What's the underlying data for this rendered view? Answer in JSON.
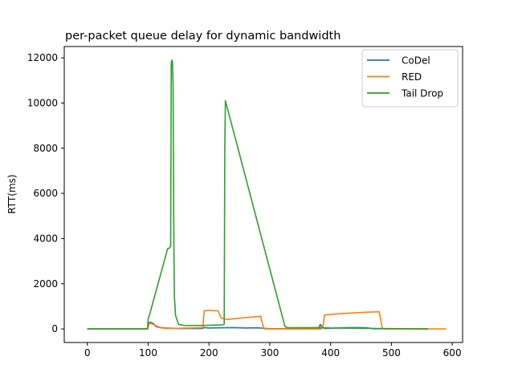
{
  "chart_data": {
    "type": "line",
    "title": "per-packet queue delay for dynamic bandwidth",
    "xlabel": "",
    "ylabel": "RTT(ms)",
    "xlim": [
      -38,
      617
    ],
    "ylim": [
      -600,
      12500
    ],
    "xticks": [
      0,
      100,
      200,
      300,
      400,
      500,
      600
    ],
    "yticks": [
      0,
      2000,
      4000,
      6000,
      8000,
      10000,
      12000
    ],
    "grid": false,
    "legend_position": "top-right",
    "series": [
      {
        "name": "CoDel",
        "color": "#1f77b4",
        "points": [
          [
            0,
            0
          ],
          [
            99,
            0
          ],
          [
            100,
            150
          ],
          [
            102,
            300
          ],
          [
            105,
            280
          ],
          [
            108,
            250
          ],
          [
            110,
            200
          ],
          [
            112,
            120
          ],
          [
            115,
            90
          ],
          [
            120,
            60
          ],
          [
            130,
            40
          ],
          [
            140,
            30
          ],
          [
            150,
            20
          ],
          [
            190,
            20
          ],
          [
            191,
            60
          ],
          [
            200,
            40
          ],
          [
            220,
            50
          ],
          [
            240,
            60
          ],
          [
            260,
            40
          ],
          [
            280,
            50
          ],
          [
            290,
            30
          ],
          [
            300,
            10
          ],
          [
            380,
            10
          ],
          [
            383,
            200
          ],
          [
            386,
            80
          ],
          [
            390,
            20
          ],
          [
            400,
            30
          ],
          [
            420,
            50
          ],
          [
            440,
            60
          ],
          [
            460,
            50
          ],
          [
            465,
            30
          ],
          [
            470,
            10
          ],
          [
            560,
            0
          ]
        ]
      },
      {
        "name": "RED",
        "color": "#ff7f0e",
        "points": [
          [
            0,
            0
          ],
          [
            99,
            0
          ],
          [
            100,
            100
          ],
          [
            102,
            250
          ],
          [
            106,
            230
          ],
          [
            110,
            180
          ],
          [
            115,
            120
          ],
          [
            120,
            60
          ],
          [
            130,
            20
          ],
          [
            150,
            30
          ],
          [
            170,
            40
          ],
          [
            190,
            60
          ],
          [
            192,
            800
          ],
          [
            200,
            820
          ],
          [
            210,
            810
          ],
          [
            215,
            800
          ],
          [
            220,
            480
          ],
          [
            230,
            420
          ],
          [
            240,
            450
          ],
          [
            260,
            500
          ],
          [
            285,
            560
          ],
          [
            290,
            10
          ],
          [
            300,
            0
          ],
          [
            385,
            0
          ],
          [
            388,
            200
          ],
          [
            390,
            620
          ],
          [
            400,
            640
          ],
          [
            420,
            680
          ],
          [
            440,
            710
          ],
          [
            460,
            740
          ],
          [
            480,
            760
          ],
          [
            485,
            20
          ],
          [
            490,
            0
          ],
          [
            590,
            0
          ]
        ]
      },
      {
        "name": "Tail Drop",
        "color": "#2ca02c",
        "points": [
          [
            0,
            0
          ],
          [
            99,
            0
          ],
          [
            100,
            450
          ],
          [
            102,
            600
          ],
          [
            132,
            3550
          ],
          [
            135,
            3580
          ],
          [
            137,
            3650
          ],
          [
            138,
            11800
          ],
          [
            139,
            11900
          ],
          [
            140,
            11800
          ],
          [
            141,
            10800
          ],
          [
            142,
            5000
          ],
          [
            143,
            1500
          ],
          [
            145,
            600
          ],
          [
            150,
            200
          ],
          [
            160,
            150
          ],
          [
            200,
            160
          ],
          [
            222,
            180
          ],
          [
            225,
            200
          ],
          [
            226,
            8000
          ],
          [
            227,
            10100
          ],
          [
            325,
            100
          ],
          [
            330,
            50
          ],
          [
            380,
            60
          ],
          [
            390,
            50
          ],
          [
            400,
            40
          ],
          [
            560,
            0
          ]
        ]
      }
    ]
  }
}
